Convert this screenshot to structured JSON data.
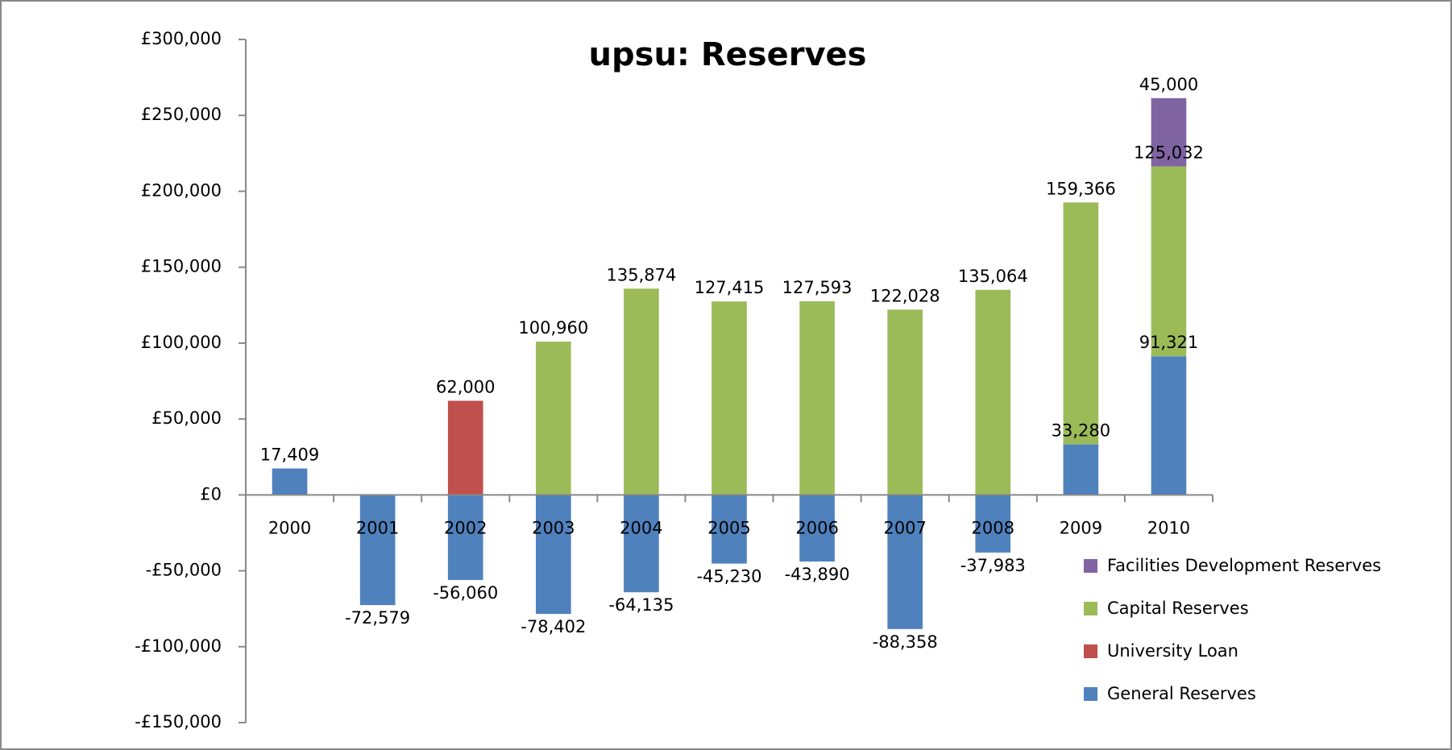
{
  "chart_data": {
    "type": "stacked_bar",
    "title": "upsu: Reserves",
    "categories": [
      "2000",
      "2001",
      "2002",
      "2003",
      "2004",
      "2005",
      "2006",
      "2007",
      "2008",
      "2009",
      "2010"
    ],
    "series": [
      {
        "name": "General Reserves",
        "color": "#4f81bd",
        "values": [
          17409,
          -72579,
          -56060,
          -78402,
          -64135,
          -45230,
          -43890,
          -88358,
          -37983,
          33280,
          91321
        ],
        "value_labels": [
          "17,409",
          "-72,579",
          "-56,060",
          "-78,402",
          "-64,135",
          "-45,230",
          "-43,890",
          "-88,358",
          "-37,983",
          "33,280",
          "91,321"
        ]
      },
      {
        "name": "University Loan",
        "color": "#c0504d",
        "values": [
          null,
          null,
          62000,
          null,
          null,
          null,
          null,
          null,
          null,
          null,
          null
        ],
        "value_labels": [
          null,
          null,
          "62,000",
          null,
          null,
          null,
          null,
          null,
          null,
          null,
          null
        ]
      },
      {
        "name": "Capital Reserves",
        "color": "#9bbb59",
        "values": [
          null,
          null,
          null,
          100960,
          135874,
          127415,
          127593,
          122028,
          135064,
          159366,
          125032
        ],
        "value_labels": [
          null,
          null,
          null,
          "100,960",
          "135,874",
          "127,415",
          "127,593",
          "122,028",
          "135,064",
          "159,366",
          "125,032"
        ]
      },
      {
        "name": "Facilities Development Reserves",
        "color": "#8064a2",
        "values": [
          null,
          null,
          null,
          null,
          null,
          null,
          null,
          null,
          null,
          null,
          45000
        ],
        "value_labels": [
          null,
          null,
          null,
          null,
          null,
          null,
          null,
          null,
          null,
          null,
          "45,000"
        ]
      }
    ],
    "ylim": [
      -150000,
      300000
    ],
    "yticks": [
      {
        "value": -150000,
        "label": "-£150,000"
      },
      {
        "value": -100000,
        "label": "-£100,000"
      },
      {
        "value": -50000,
        "label": "-£50,000"
      },
      {
        "value": 0,
        "label": "£0"
      },
      {
        "value": 50000,
        "label": "£50,000"
      },
      {
        "value": 100000,
        "label": "£100,000"
      },
      {
        "value": 150000,
        "label": "£150,000"
      },
      {
        "value": 200000,
        "label": "£200,000"
      },
      {
        "value": 250000,
        "label": "£250,000"
      },
      {
        "value": 300000,
        "label": "£300,000"
      }
    ],
    "negative_color": "#ff0000",
    "legend": "right"
  }
}
